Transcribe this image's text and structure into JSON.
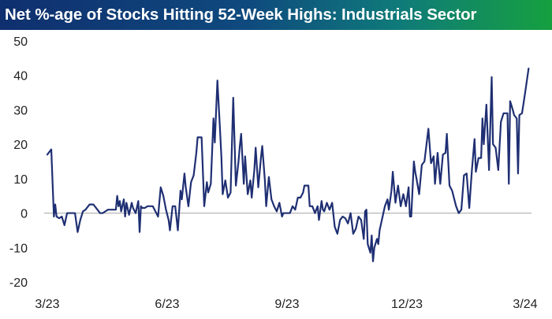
{
  "title": "Net %-age of Stocks Hitting 52-Week Highs: Industrials Sector",
  "colors": {
    "line": "#1f2f73",
    "zero_line": "#b0b0b0",
    "title_gradient_start": "#0f2f6e",
    "title_gradient_end": "#16a040",
    "title_text": "#ffffff"
  },
  "chart_data": {
    "type": "line",
    "title": "Net %-age of Stocks Hitting 52-Week Highs: Industrials Sector",
    "xlabel": "",
    "ylabel": "",
    "x_ticks": [
      "3/23",
      "6/23",
      "9/23",
      "12/23",
      "3/24"
    ],
    "y_ticks": [
      50,
      40,
      30,
      20,
      10,
      0,
      -10,
      -20
    ],
    "ylim": [
      -20,
      50
    ],
    "xlim": [
      "2023-03-01",
      "2024-03-01"
    ],
    "grid": false,
    "legend": "none",
    "zero_line": true,
    "series": [
      {
        "points": [
          [
            "2023-03-01",
            17.0
          ],
          [
            "2023-03-04",
            18.5
          ],
          [
            "2023-03-06",
            -1.0
          ],
          [
            "2023-03-07",
            2.5
          ],
          [
            "2023-03-08",
            -1.0
          ],
          [
            "2023-03-10",
            -1.5
          ],
          [
            "2023-03-12",
            -1.0
          ],
          [
            "2023-03-14",
            -3.5
          ],
          [
            "2023-03-16",
            0.0
          ],
          [
            "2023-03-18",
            0.0
          ],
          [
            "2023-03-20",
            0.0
          ],
          [
            "2023-03-22",
            0.0
          ],
          [
            "2023-03-24",
            -5.5
          ],
          [
            "2023-03-26",
            -2.0
          ],
          [
            "2023-03-28",
            0.5
          ],
          [
            "2023-03-30",
            1.0
          ],
          [
            "2023-04-02",
            2.5
          ],
          [
            "2023-04-05",
            2.5
          ],
          [
            "2023-04-08",
            1.0
          ],
          [
            "2023-04-10",
            0.0
          ],
          [
            "2023-04-12",
            0.0
          ],
          [
            "2023-04-14",
            0.5
          ],
          [
            "2023-04-16",
            1.0
          ],
          [
            "2023-04-18",
            1.0
          ],
          [
            "2023-04-20",
            1.0
          ],
          [
            "2023-04-22",
            1.0
          ],
          [
            "2023-04-23",
            5.0
          ],
          [
            "2023-04-24",
            2.0
          ],
          [
            "2023-04-25",
            3.5
          ],
          [
            "2023-04-26",
            0.5
          ],
          [
            "2023-04-28",
            4.0
          ],
          [
            "2023-04-29",
            -1.0
          ],
          [
            "2023-04-30",
            3.0
          ],
          [
            "2023-05-02",
            -0.5
          ],
          [
            "2023-05-04",
            3.0
          ],
          [
            "2023-05-05",
            1.5
          ],
          [
            "2023-05-07",
            0.0
          ],
          [
            "2023-05-09",
            3.5
          ],
          [
            "2023-05-10",
            -5.5
          ],
          [
            "2023-05-11",
            2.0
          ],
          [
            "2023-05-12",
            1.5
          ],
          [
            "2023-05-14",
            1.5
          ],
          [
            "2023-05-16",
            2.0
          ],
          [
            "2023-05-18",
            2.0
          ],
          [
            "2023-05-20",
            2.0
          ],
          [
            "2023-05-22",
            0.5
          ],
          [
            "2023-05-24",
            -1.0
          ],
          [
            "2023-05-26",
            7.5
          ],
          [
            "2023-05-28",
            5.0
          ],
          [
            "2023-05-30",
            1.0
          ],
          [
            "2023-06-01",
            -2.0
          ],
          [
            "2023-06-02",
            -5.0
          ],
          [
            "2023-06-04",
            2.0
          ],
          [
            "2023-06-06",
            2.0
          ],
          [
            "2023-06-08",
            -5.0
          ],
          [
            "2023-06-10",
            6.5
          ],
          [
            "2023-06-11",
            4.0
          ],
          [
            "2023-06-13",
            11.5
          ],
          [
            "2023-06-14",
            7.5
          ],
          [
            "2023-06-16",
            2.0
          ],
          [
            "2023-06-18",
            9.0
          ],
          [
            "2023-06-20",
            11.0
          ],
          [
            "2023-06-22",
            17.5
          ],
          [
            "2023-06-23",
            22.0
          ],
          [
            "2023-06-26",
            22.0
          ],
          [
            "2023-06-28",
            2.0
          ],
          [
            "2023-06-30",
            9.0
          ],
          [
            "2023-07-01",
            6.0
          ],
          [
            "2023-07-03",
            8.5
          ],
          [
            "2023-07-05",
            27.5
          ],
          [
            "2023-07-06",
            20.5
          ],
          [
            "2023-07-08",
            38.5
          ],
          [
            "2023-07-10",
            24.0
          ],
          [
            "2023-07-11",
            16.5
          ],
          [
            "2023-07-12",
            5.5
          ],
          [
            "2023-07-14",
            9.5
          ],
          [
            "2023-07-16",
            4.5
          ],
          [
            "2023-07-18",
            6.0
          ],
          [
            "2023-07-20",
            33.5
          ],
          [
            "2023-07-22",
            8.0
          ],
          [
            "2023-07-24",
            15.0
          ],
          [
            "2023-07-25",
            19.5
          ],
          [
            "2023-07-26",
            23.0
          ],
          [
            "2023-07-28",
            8.5
          ],
          [
            "2023-07-29",
            16.5
          ],
          [
            "2023-07-31",
            5.5
          ],
          [
            "2023-08-02",
            9.5
          ],
          [
            "2023-08-03",
            4.5
          ],
          [
            "2023-08-05",
            12.5
          ],
          [
            "2023-08-06",
            19.0
          ],
          [
            "2023-08-08",
            7.5
          ],
          [
            "2023-08-10",
            16.0
          ],
          [
            "2023-08-11",
            19.5
          ],
          [
            "2023-08-13",
            9.5
          ],
          [
            "2023-08-14",
            2.0
          ],
          [
            "2023-08-16",
            10.5
          ],
          [
            "2023-08-18",
            4.0
          ],
          [
            "2023-08-20",
            2.0
          ],
          [
            "2023-08-22",
            0.5
          ],
          [
            "2023-08-24",
            3.0
          ],
          [
            "2023-08-26",
            -1.0
          ],
          [
            "2023-08-27",
            0.0
          ],
          [
            "2023-08-30",
            0.0
          ],
          [
            "2023-09-01",
            0.0
          ],
          [
            "2023-09-03",
            2.0
          ],
          [
            "2023-09-05",
            1.0
          ],
          [
            "2023-09-07",
            4.5
          ],
          [
            "2023-09-09",
            4.5
          ],
          [
            "2023-09-11",
            6.0
          ],
          [
            "2023-09-12",
            8.0
          ],
          [
            "2023-09-15",
            8.0
          ],
          [
            "2023-09-16",
            2.0
          ],
          [
            "2023-09-18",
            2.0
          ],
          [
            "2023-09-20",
            0.0
          ],
          [
            "2023-09-22",
            2.0
          ],
          [
            "2023-09-23",
            -2.0
          ],
          [
            "2023-09-25",
            3.5
          ],
          [
            "2023-09-26",
            1.0
          ],
          [
            "2023-09-27",
            0.5
          ],
          [
            "2023-09-29",
            3.0
          ],
          [
            "2023-10-01",
            1.0
          ],
          [
            "2023-10-03",
            3.0
          ],
          [
            "2023-10-05",
            -4.0
          ],
          [
            "2023-10-07",
            -6.0
          ],
          [
            "2023-10-09",
            -2.0
          ],
          [
            "2023-10-11",
            -1.0
          ],
          [
            "2023-10-13",
            -1.5
          ],
          [
            "2023-10-15",
            -3.0
          ],
          [
            "2023-10-17",
            0.0
          ],
          [
            "2023-10-19",
            -6.0
          ],
          [
            "2023-10-21",
            -4.5
          ],
          [
            "2023-10-23",
            -1.0
          ],
          [
            "2023-10-25",
            -2.0
          ],
          [
            "2023-10-27",
            -7.5
          ],
          [
            "2023-10-28",
            0.5
          ],
          [
            "2023-10-29",
            1.0
          ],
          [
            "2023-10-30",
            -9.0
          ],
          [
            "2023-11-01",
            -11.5
          ],
          [
            "2023-11-02",
            -6.5
          ],
          [
            "2023-11-03",
            -14.0
          ],
          [
            "2023-11-04",
            -10.0
          ],
          [
            "2023-11-06",
            -7.5
          ],
          [
            "2023-11-07",
            -9.0
          ],
          [
            "2023-11-08",
            -5.0
          ],
          [
            "2023-11-10",
            -1.5
          ],
          [
            "2023-11-12",
            2.0
          ],
          [
            "2023-11-14",
            4.0
          ],
          [
            "2023-11-15",
            1.0
          ],
          [
            "2023-11-17",
            6.5
          ],
          [
            "2023-11-18",
            12.0
          ],
          [
            "2023-11-20",
            3.0
          ],
          [
            "2023-11-22",
            8.0
          ],
          [
            "2023-11-24",
            2.0
          ],
          [
            "2023-11-26",
            5.5
          ],
          [
            "2023-11-28",
            2.0
          ],
          [
            "2023-11-30",
            7.5
          ],
          [
            "2023-12-01",
            -1.0
          ],
          [
            "2023-12-02",
            -1.0
          ],
          [
            "2023-12-04",
            15.0
          ],
          [
            "2023-12-05",
            12.0
          ],
          [
            "2023-12-06",
            10.0
          ],
          [
            "2023-12-08",
            5.5
          ],
          [
            "2023-12-10",
            14.0
          ],
          [
            "2023-12-12",
            15.0
          ],
          [
            "2023-12-15",
            24.5
          ],
          [
            "2023-12-17",
            14.5
          ],
          [
            "2023-12-19",
            16.5
          ],
          [
            "2023-12-20",
            8.5
          ],
          [
            "2023-12-22",
            17.5
          ],
          [
            "2023-12-24",
            8.5
          ],
          [
            "2023-12-26",
            17.0
          ],
          [
            "2023-12-28",
            17.5
          ],
          [
            "2023-12-29",
            23.0
          ],
          [
            "2023-12-31",
            8.0
          ],
          [
            "2024-01-02",
            6.5
          ],
          [
            "2024-01-05",
            2.0
          ],
          [
            "2024-01-07",
            0.0
          ],
          [
            "2024-01-09",
            1.0
          ],
          [
            "2024-01-11",
            11.0
          ],
          [
            "2024-01-13",
            11.5
          ],
          [
            "2024-01-15",
            1.5
          ],
          [
            "2024-01-17",
            12.5
          ],
          [
            "2024-01-19",
            21.5
          ],
          [
            "2024-01-20",
            12.0
          ],
          [
            "2024-01-22",
            16.0
          ],
          [
            "2024-01-24",
            16.0
          ],
          [
            "2024-01-25",
            27.5
          ],
          [
            "2024-01-26",
            20.0
          ],
          [
            "2024-01-28",
            31.5
          ],
          [
            "2024-01-30",
            12.5
          ],
          [
            "2024-02-01",
            39.5
          ],
          [
            "2024-02-02",
            20.0
          ],
          [
            "2024-02-04",
            19.0
          ],
          [
            "2024-02-06",
            12.5
          ],
          [
            "2024-02-08",
            26.5
          ],
          [
            "2024-02-10",
            29.0
          ],
          [
            "2024-02-13",
            29.0
          ],
          [
            "2024-02-14",
            8.5
          ],
          [
            "2024-02-15",
            32.5
          ],
          [
            "2024-02-17",
            30.0
          ],
          [
            "2024-02-18",
            28.5
          ],
          [
            "2024-02-20",
            27.5
          ],
          [
            "2024-02-21",
            11.5
          ],
          [
            "2024-02-22",
            28.5
          ],
          [
            "2024-02-24",
            29.0
          ],
          [
            "2024-02-26",
            34.0
          ],
          [
            "2024-02-29",
            42.0
          ]
        ]
      }
    ]
  }
}
